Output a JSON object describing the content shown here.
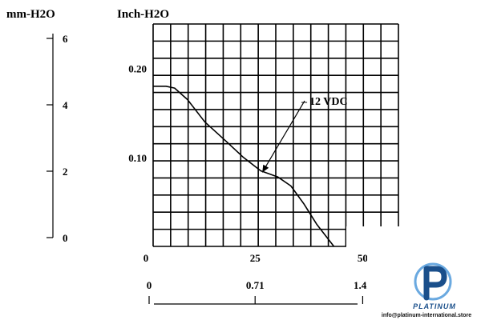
{
  "chart_data": {
    "type": "line",
    "title": "",
    "ylabel_primary": "Inch-H2O",
    "ylabel_secondary": "mm-H2O",
    "xlabel": "",
    "xlim": [
      0,
      57
    ],
    "ylim": [
      0,
      0.25
    ],
    "x_ticks_primary": [
      "0",
      "25",
      "50"
    ],
    "x_ticks_secondary": [
      "0",
      "0.71",
      "1.42"
    ],
    "y_ticks_primary": [
      "0.10",
      "0.20"
    ],
    "y_ticks_secondary": [
      "0",
      "2",
      "4",
      "6"
    ],
    "grid": true,
    "series": [
      {
        "name": "12 VDC",
        "x": [
          0,
          3,
          5,
          8,
          12,
          17,
          21,
          25,
          29,
          32,
          35,
          38,
          42
        ],
        "y": [
          0.18,
          0.18,
          0.178,
          0.165,
          0.14,
          0.118,
          0.1,
          0.085,
          0.078,
          0.068,
          0.048,
          0.025,
          0.0
        ]
      }
    ],
    "annotations": [
      {
        "text": "12 VDC",
        "target_series": "12 VDC"
      }
    ]
  },
  "logo": {
    "brand": "PLATINUM",
    "email": "info@platinum-international.store",
    "colors": {
      "primary": "#1a4f8b",
      "accent": "#6aa9e0"
    }
  }
}
